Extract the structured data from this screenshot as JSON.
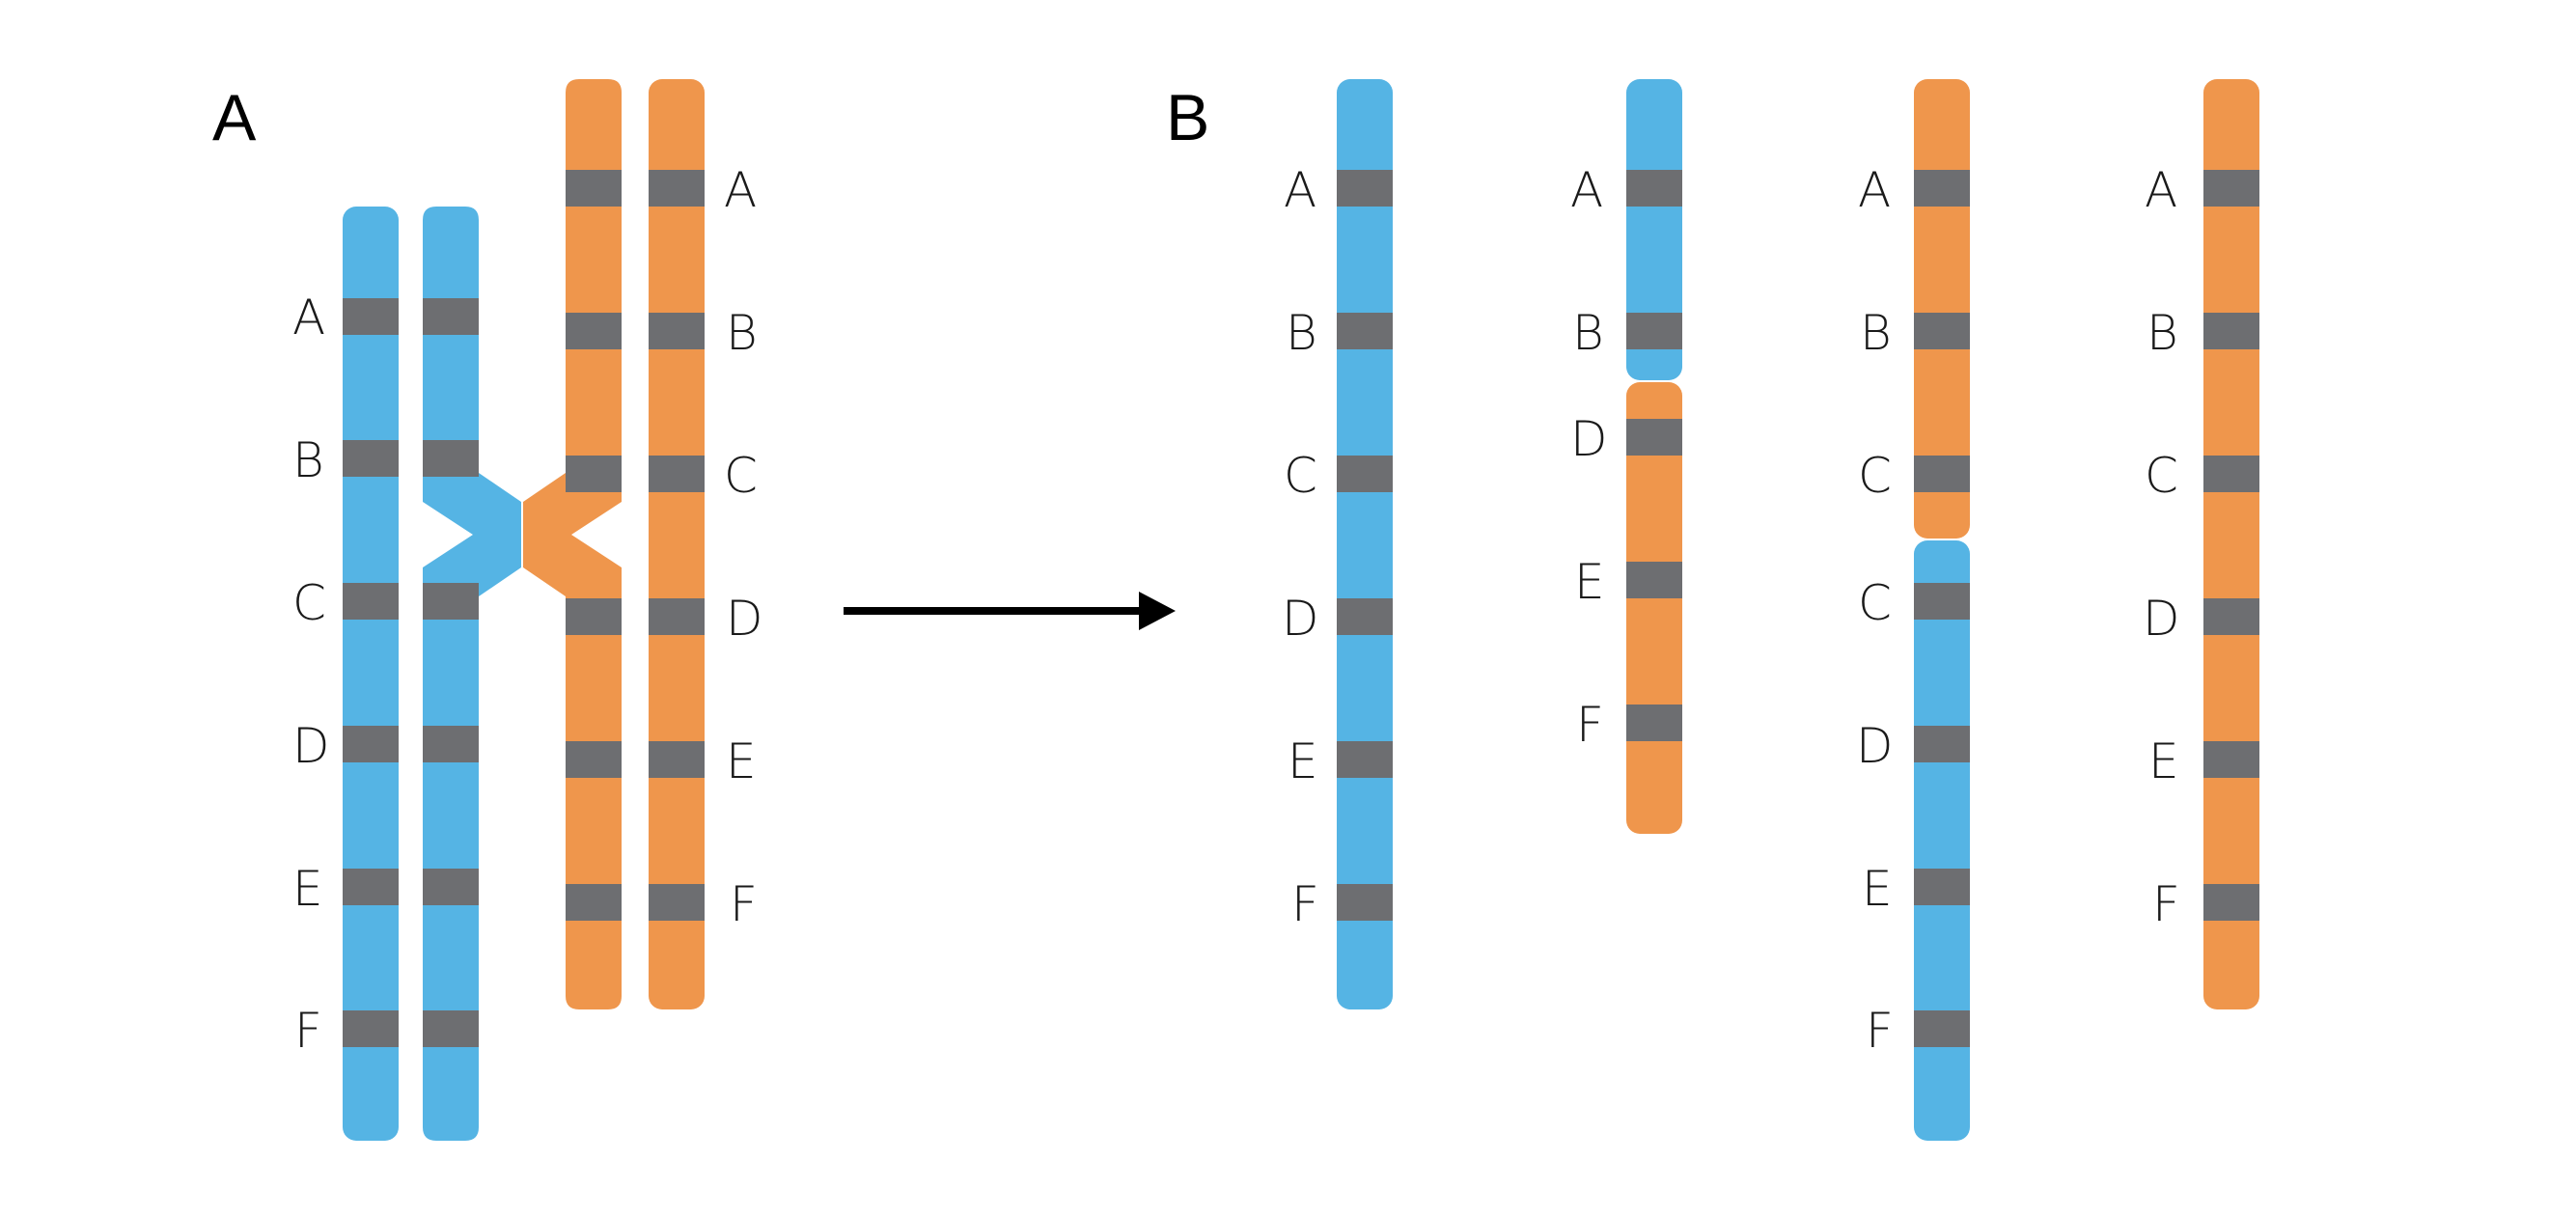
{
  "colors": {
    "blue": "#55b4e4",
    "orange": "#ef964c",
    "band": "#6d6e71",
    "arrow": "#000000"
  },
  "panels": [
    {
      "id": "A",
      "label": "A"
    },
    {
      "id": "B",
      "label": "B"
    }
  ],
  "loci": [
    "A",
    "B",
    "C",
    "D",
    "E",
    "F"
  ],
  "panel_a": {
    "chromatids": [
      {
        "name": "blue-chromatid-1",
        "color": "blue",
        "loci": [
          "A",
          "B",
          "C",
          "D",
          "E",
          "F"
        ],
        "labels_side": "left"
      },
      {
        "name": "blue-chromatid-2",
        "color": "blue",
        "loci": [
          "A",
          "B",
          "C",
          "D",
          "E",
          "F"
        ],
        "labels_side": "none"
      },
      {
        "name": "orange-chromatid-1",
        "color": "orange",
        "loci": [
          "A",
          "B",
          "C",
          "D",
          "E",
          "F"
        ],
        "labels_side": "none"
      },
      {
        "name": "orange-chromatid-2",
        "color": "orange",
        "loci": [
          "A",
          "B",
          "C",
          "D",
          "E",
          "F"
        ],
        "labels_side": "right"
      }
    ],
    "crossover": "between B and C (blue) / C and D (orange)"
  },
  "panel_b": {
    "chromatids": [
      {
        "name": "parental-blue",
        "segments": [
          {
            "color": "blue",
            "loci": [
              "A",
              "B",
              "C",
              "D",
              "E",
              "F"
            ]
          }
        ]
      },
      {
        "name": "recombinant-blue-orange",
        "segments": [
          {
            "color": "blue",
            "loci": [
              "A",
              "B"
            ]
          },
          {
            "color": "orange",
            "loci": [
              "D",
              "E",
              "F"
            ]
          }
        ]
      },
      {
        "name": "recombinant-orange-blue",
        "segments": [
          {
            "color": "orange",
            "loci": [
              "A",
              "B",
              "C"
            ]
          },
          {
            "color": "blue",
            "loci": [
              "C",
              "D",
              "E",
              "F"
            ]
          }
        ]
      },
      {
        "name": "parental-orange",
        "segments": [
          {
            "color": "orange",
            "loci": [
              "A",
              "B",
              "C",
              "D",
              "E",
              "F"
            ]
          }
        ]
      }
    ]
  }
}
